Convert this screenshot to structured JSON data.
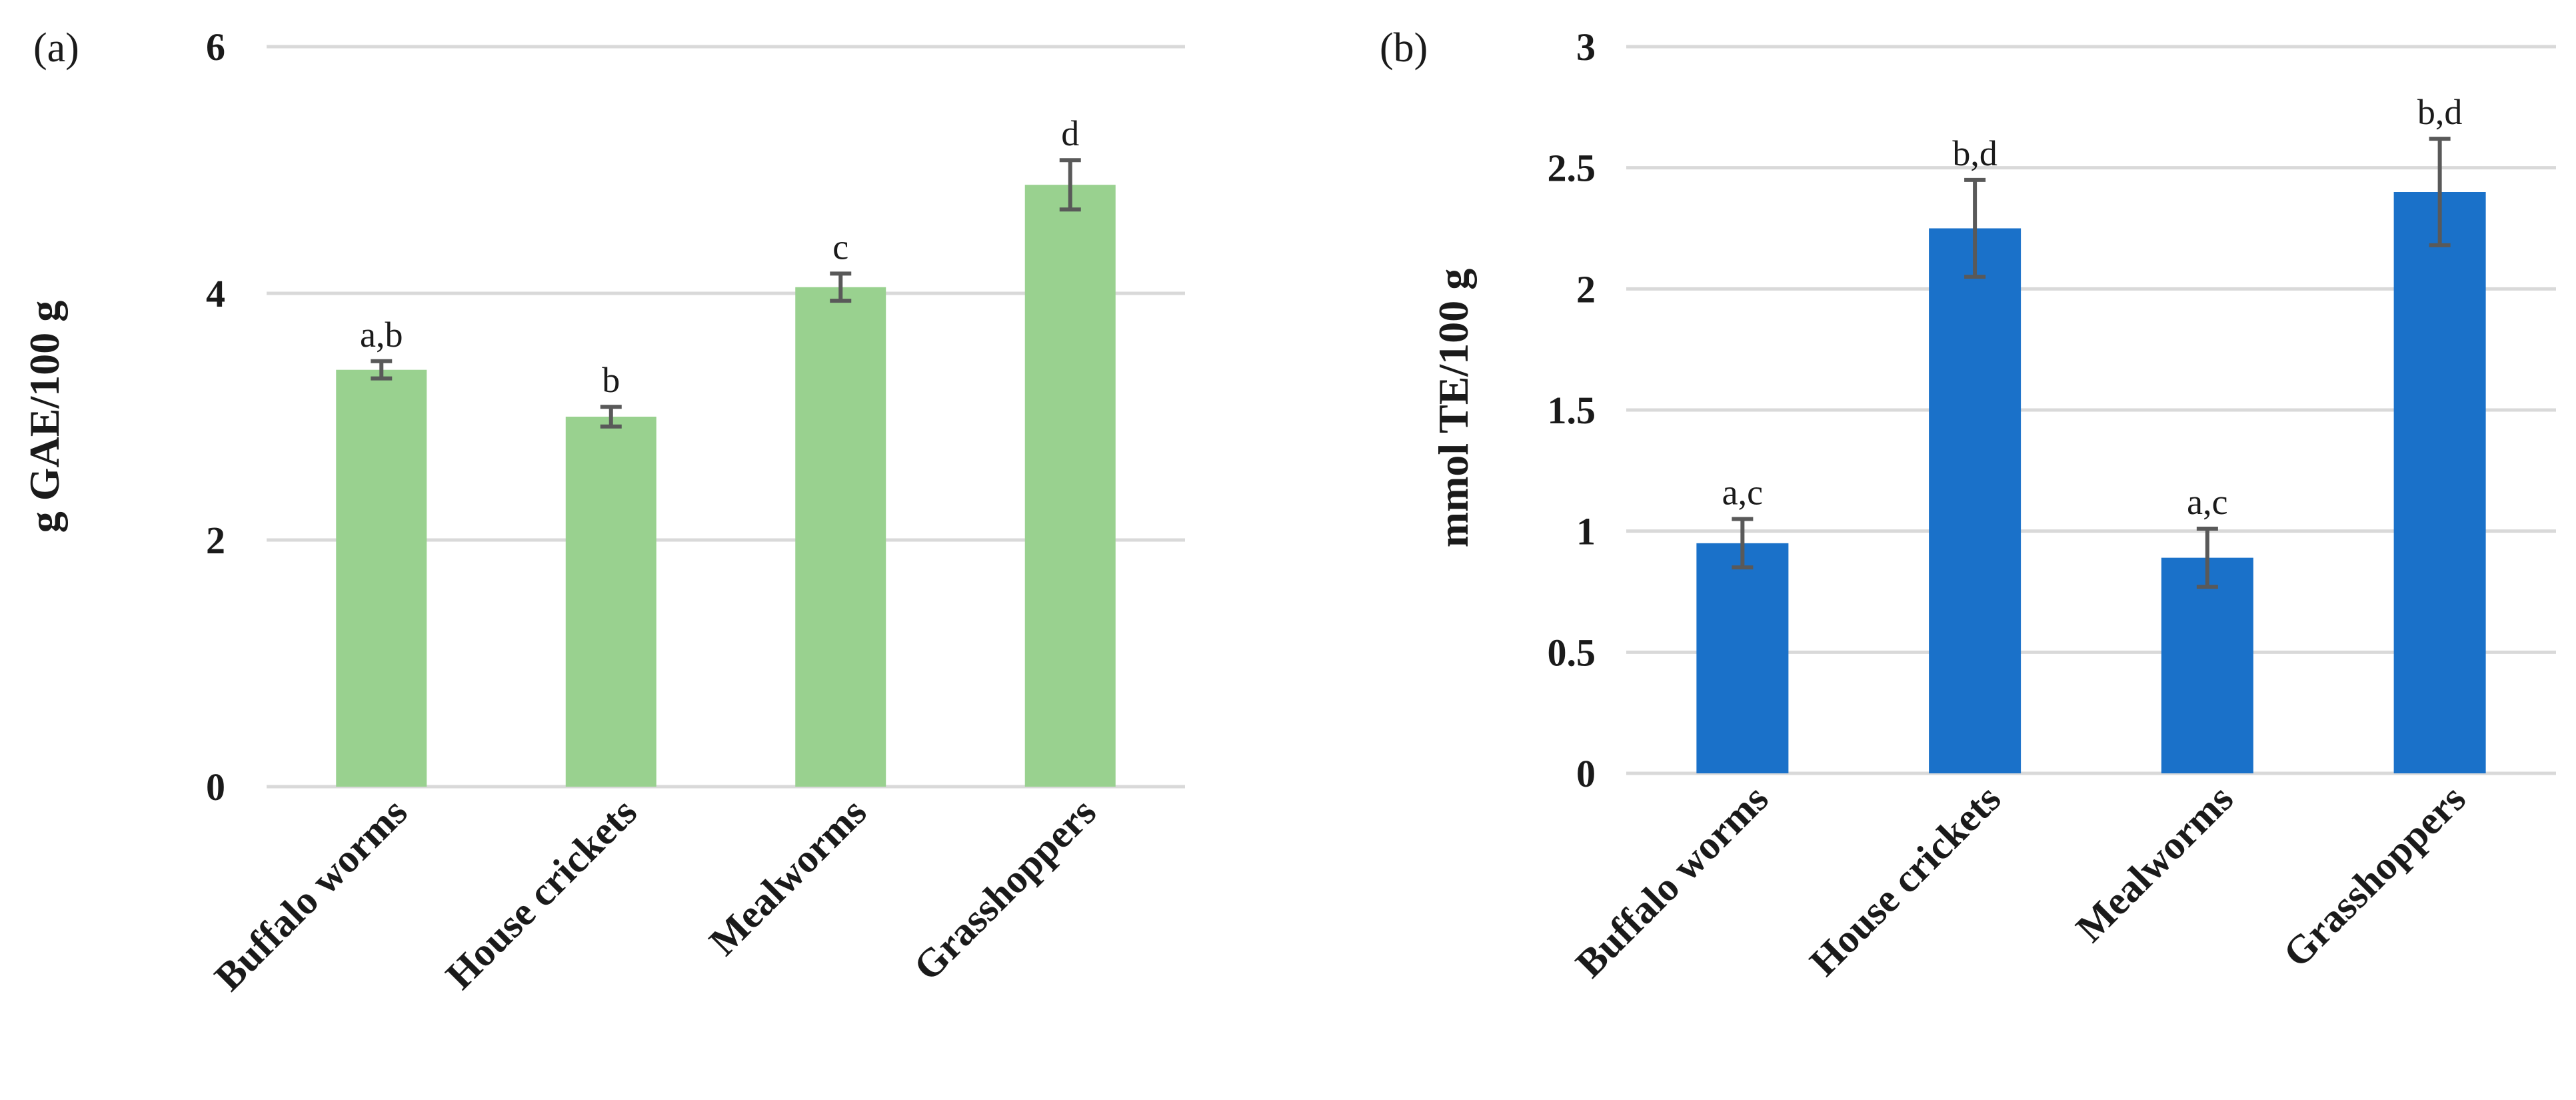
{
  "chart_data": [
    {
      "type": "bar",
      "panel_label": "(a)",
      "title": "",
      "xlabel": "",
      "ylabel": "g GAE/100 g",
      "ylim": [
        0,
        6
      ],
      "yticks": [
        0,
        2,
        4,
        6
      ],
      "grid": true,
      "color": "#99d18f",
      "categories": [
        "Buffalo worms",
        "House crickets",
        "Mealworms",
        "Grasshoppers"
      ],
      "values": [
        3.38,
        3.0,
        4.05,
        4.88
      ],
      "errors": [
        0.07,
        0.08,
        0.11,
        0.2
      ],
      "significance": [
        "a,b",
        "b",
        "c",
        "d"
      ]
    },
    {
      "type": "bar",
      "panel_label": "(b)",
      "title": "",
      "xlabel": "",
      "ylabel": "mmol TE/100 g",
      "ylim": [
        0,
        3
      ],
      "yticks": [
        0,
        0.5,
        1,
        1.5,
        2,
        2.5,
        3
      ],
      "grid": true,
      "color": "#1a71c9",
      "categories": [
        "Buffalo worms",
        "House crickets",
        "Mealworms",
        "Grasshoppers"
      ],
      "values": [
        0.95,
        2.25,
        0.89,
        2.4
      ],
      "errors": [
        0.1,
        0.2,
        0.12,
        0.22
      ],
      "significance": [
        "a,c",
        "b,d",
        "a,c",
        "b,d"
      ]
    }
  ]
}
